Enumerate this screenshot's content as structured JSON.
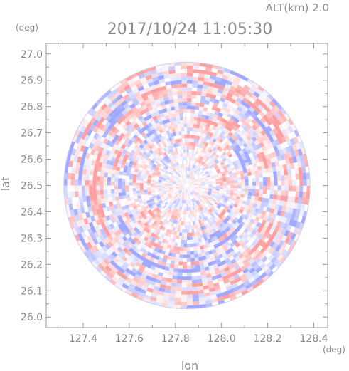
{
  "chart_data": {
    "type": "heatmap",
    "title": "2017/10/24 11:05:30",
    "subtitle": "ALT(km) 2.0",
    "xlabel": "lon",
    "ylabel": "lat",
    "x_unit": "(deg)",
    "y_unit": "(deg)",
    "xlim": [
      127.24,
      128.46
    ],
    "ylim": [
      25.96,
      27.04
    ],
    "xticks": [
      127.4,
      127.6,
      127.8,
      128.0,
      128.2,
      128.4
    ],
    "yticks": [
      26.0,
      26.1,
      26.2,
      26.3,
      26.4,
      26.5,
      26.6,
      26.7,
      26.8,
      26.9,
      27.0
    ],
    "xtick_labels": [
      "127.4",
      "127.6",
      "127.8",
      "128.0",
      "128.2",
      "128.4"
    ],
    "ytick_labels": [
      "26.0",
      "26.1",
      "26.2",
      "26.3",
      "26.4",
      "26.5",
      "26.6",
      "26.7",
      "26.8",
      "26.9",
      "27.0"
    ],
    "radar_center": {
      "lon": 127.85,
      "lat": 26.5
    },
    "radar_radius_deg": 0.535,
    "colors": {
      "positive": "#f2a0a0",
      "negative": "#a0a8f2",
      "near_zero": "#ffffff",
      "frame": "#9a9a9a",
      "text": "#8a8a8a"
    }
  }
}
